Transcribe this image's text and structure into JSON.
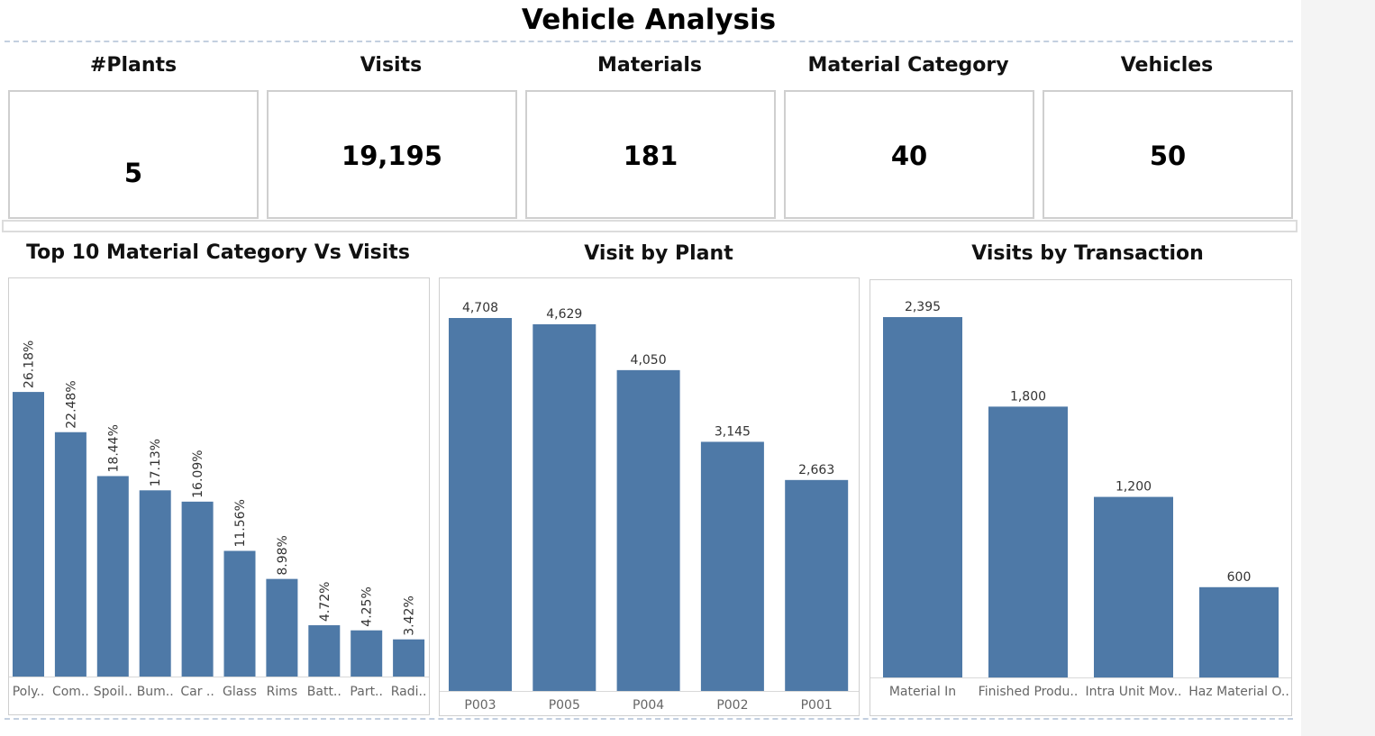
{
  "title": "Vehicle Analysis",
  "colors": {
    "bar": "#4e79a7",
    "separator": "#c3cfdf",
    "border": "#cfcfcf"
  },
  "kpis": [
    {
      "label": "#Plants",
      "value": "5"
    },
    {
      "label": "Visits",
      "value": "19,195"
    },
    {
      "label": "Materials",
      "value": "181"
    },
    {
      "label": "Material Category",
      "value": "40"
    },
    {
      "label": "Vehicles",
      "value": "50"
    }
  ],
  "chart_data": [
    {
      "type": "bar",
      "title": "Top 10 Material Category Vs Visits",
      "categories": [
        "Poly..",
        "Com..",
        "Spoil..",
        "Bum..",
        "Car ..",
        "Glass",
        "Rims",
        "Batt..",
        "Part..",
        "Radi.."
      ],
      "values": [
        26.18,
        22.48,
        18.44,
        17.13,
        16.09,
        11.56,
        8.98,
        4.72,
        4.25,
        3.42
      ],
      "labels": [
        "26.18%",
        "22.48%",
        "18.44%",
        "17.13%",
        "16.09%",
        "11.56%",
        "8.98%",
        "4.72%",
        "4.25%",
        "3.42%"
      ],
      "ylim": [
        0,
        30
      ],
      "label_rotation": "vertical",
      "grid": false
    },
    {
      "type": "bar",
      "title": "Visit by Plant",
      "categories": [
        "P003",
        "P005",
        "P004",
        "P002",
        "P001"
      ],
      "values": [
        4708,
        4629,
        4050,
        3145,
        2663
      ],
      "labels": [
        "4,708",
        "4,629",
        "4,050",
        "3,145",
        "2,663"
      ],
      "ylim": [
        0,
        4708
      ],
      "grid": false
    },
    {
      "type": "bar",
      "title": "Visits by Transaction",
      "categories": [
        "Material In",
        "Finished Produ..",
        "Intra Unit Mov..",
        "Haz Material O.."
      ],
      "values": [
        2395,
        1800,
        1200,
        600
      ],
      "labels": [
        "2,395",
        "1,800",
        "1,200",
        "600"
      ],
      "ylim": [
        0,
        2395
      ],
      "grid": false
    }
  ]
}
